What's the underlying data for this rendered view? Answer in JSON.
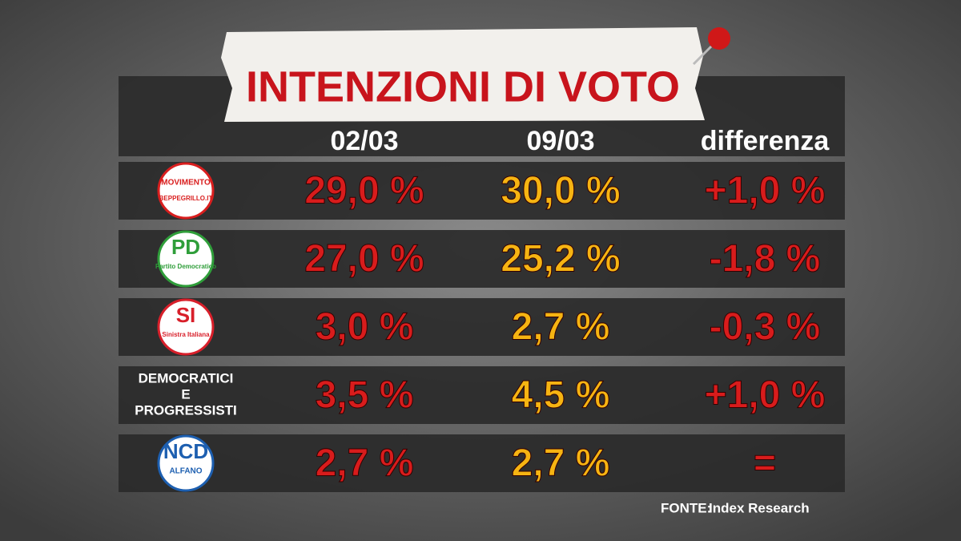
{
  "header": {
    "title": "INTENZIONI DI VOTO"
  },
  "table": {
    "columns": [
      "02/03",
      "09/03",
      "differenza"
    ],
    "rows": [
      {
        "logo": [
          "MOVIMENTO",
          "BEPPEGRILLO.IT"
        ],
        "cells": [
          "29,0 %",
          "30,0 %",
          "+1,0 %"
        ]
      },
      {
        "logo": [
          "PD",
          "Partito Democratico"
        ],
        "cells": [
          "27,0 %",
          "25,2 %",
          "-1,8 %"
        ]
      },
      {
        "logo": [
          "SI",
          "Sinistra Italiana"
        ],
        "cells": [
          "3,0 %",
          "2,7 %",
          "-0,3 %"
        ]
      },
      {
        "name": [
          "DEMOCRATICI",
          "E",
          "PROGRESSISTI"
        ],
        "cells": [
          "3,5 %",
          "4,5 %",
          "+1,0 %"
        ]
      },
      {
        "logo": [
          "NCD",
          "ALFANO"
        ],
        "cells": [
          "2,7 %",
          "2,7 %",
          "="
        ]
      }
    ]
  },
  "source": {
    "label": "FONTE:",
    "text": "Index Research"
  }
}
